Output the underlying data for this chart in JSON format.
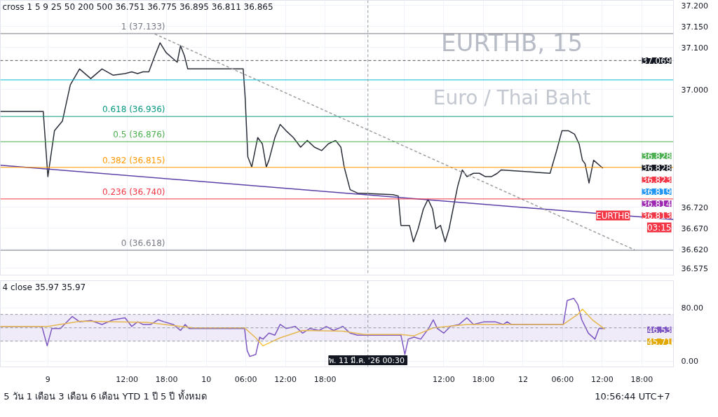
{
  "chart_data": [
    {
      "type": "line",
      "annotations": [
        "cross 1 5 9 25 50 200 500   36.751  36.775  36.895  36.811  36.865",
        "EURTHB, 15",
        "Euro / Thai Baht",
        "EURTHB",
        "03:15",
        "37.069",
        "36.828",
        "36.828",
        "36.823",
        "36.819",
        "36.814",
        "36.813"
      ],
      "xlim": [
        "2026-03-08T16:48",
        "2026-03-12T22:48"
      ],
      "xticks": [
        {
          "value": "2026-03-09T00:00",
          "label": null
        },
        {
          "value": "2026-03-09T12:00",
          "label": null
        },
        {
          "value": "2026-03-09T18:00",
          "label": null
        },
        {
          "value": "2026-03-10T00:00",
          "label": null
        },
        {
          "value": "2026-03-10T06:00",
          "label": null
        },
        {
          "value": "2026-03-10T12:00",
          "label": null
        },
        {
          "value": "2026-03-10T18:00",
          "label": null
        },
        {
          "value": "2026-03-11T00:00",
          "label": null
        },
        {
          "value": "2026-03-11T06:00",
          "label": null
        },
        {
          "value": "2026-03-11T12:00",
          "label": null
        },
        {
          "value": "2026-03-11T18:00",
          "label": null
        },
        {
          "value": "2026-03-12T00:00",
          "label": null
        },
        {
          "value": "2026-03-12T06:00",
          "label": null
        },
        {
          "value": "2026-03-12T12:00",
          "label": null
        },
        {
          "value": "2026-03-12T18:00",
          "label": null
        }
      ],
      "ylim": [
        36.559,
        37.212
      ],
      "yticks": [
        {
          "value": 36.575,
          "label": "36.575"
        },
        {
          "value": 36.62,
          "label": "36.620"
        },
        {
          "value": 36.67,
          "label": "36.670"
        },
        {
          "value": 36.72,
          "label": "36.720"
        },
        {
          "value": 37.0,
          "label": "37.000"
        },
        {
          "value": 37.1,
          "label": "37.100"
        },
        {
          "value": 37.15,
          "label": "37.150"
        },
        {
          "value": 37.2,
          "label": "37.200"
        }
      ],
      "tick_labels": "y",
      "grid": true,
      "ref_lines": [
        {
          "axis": "y",
          "value": 37.133,
          "label": "1 (37.133)",
          "color": "#787b86"
        },
        {
          "axis": "y",
          "value": 37.023,
          "color": "#00bcd4"
        },
        {
          "axis": "y",
          "value": 36.936,
          "label": "0.618 (36.936)",
          "color": "#089981"
        },
        {
          "axis": "y",
          "value": 36.876,
          "label": "0.5 (36.876)",
          "color": "#4caf50"
        },
        {
          "axis": "y",
          "value": 36.815,
          "label": "0.382 (36.815)",
          "color": "#ff9800"
        },
        {
          "axis": "y",
          "value": 36.74,
          "label": "0.236 (36.740)",
          "color": "#f23645"
        },
        {
          "axis": "y",
          "value": 36.618,
          "label": "0 (36.618)",
          "color": "#787b86"
        },
        {
          "axis": "y",
          "value": 37.069,
          "color": "#555555",
          "line_style": "dashed"
        },
        {
          "axis": "x",
          "value": "2026-03-11T00:30",
          "color": "#9598a1",
          "line_style": "dashed"
        }
      ],
      "series": [
        {
          "color": "#2a2e39",
          "x": [
            "2026-03-08T16:48",
            "2026-03-08T23:18",
            "2026-03-09T00:00",
            "2026-03-09T01:00",
            "2026-03-09T02:12",
            "2026-03-09T03:24",
            "2026-03-09T04:48",
            "2026-03-09T06:30",
            "2026-03-09T08:12",
            "2026-03-09T09:54",
            "2026-03-09T11:42",
            "2026-03-09T12:42",
            "2026-03-09T13:36",
            "2026-03-09T14:24",
            "2026-03-09T15:18",
            "2026-03-09T16:12",
            "2026-03-09T17:00",
            "2026-03-09T17:54",
            "2026-03-09T19:00",
            "2026-03-09T19:36",
            "2026-03-09T20:06",
            "2026-03-09T20:42",
            "2026-03-09T21:12",
            "2026-03-10T05:36",
            "2026-03-10T05:54",
            "2026-03-10T06:18",
            "2026-03-10T06:54",
            "2026-03-10T07:48",
            "2026-03-10T08:30",
            "2026-03-10T09:06",
            "2026-03-10T09:30",
            "2026-03-10T10:24",
            "2026-03-10T11:12",
            "2026-03-10T12:06",
            "2026-03-10T13:12",
            "2026-03-10T14:18",
            "2026-03-10T15:18",
            "2026-03-10T16:24",
            "2026-03-10T17:30",
            "2026-03-10T18:30",
            "2026-03-10T19:36",
            "2026-03-10T20:24",
            "2026-03-10T20:54",
            "2026-03-10T21:48",
            "2026-03-10T22:54",
            "2026-03-11T04:18",
            "2026-03-11T05:06",
            "2026-03-11T05:30",
            "2026-03-11T06:00",
            "2026-03-11T06:48",
            "2026-03-11T07:24",
            "2026-03-11T08:06",
            "2026-03-11T08:54",
            "2026-03-11T09:36",
            "2026-03-11T10:18",
            "2026-03-11T10:48",
            "2026-03-11T11:30",
            "2026-03-11T12:12",
            "2026-03-11T12:48",
            "2026-03-11T13:24",
            "2026-03-11T14:06",
            "2026-03-11T14:48",
            "2026-03-11T15:30",
            "2026-03-11T16:30",
            "2026-03-11T17:24",
            "2026-03-11T18:18",
            "2026-03-11T19:12",
            "2026-03-11T20:06",
            "2026-03-11T20:42",
            "2026-03-12T04:06",
            "2026-03-12T05:06",
            "2026-03-12T05:54",
            "2026-03-12T06:54",
            "2026-03-12T07:48",
            "2026-03-12T08:30",
            "2026-03-12T09:00",
            "2026-03-12T09:24",
            "2026-03-12T10:00",
            "2026-03-12T10:42",
            "2026-03-12T12:06"
          ],
          "values": [
            36.948,
            36.948,
            36.793,
            36.902,
            36.925,
            37.011,
            37.049,
            37.026,
            37.049,
            37.034,
            37.038,
            37.042,
            37.038,
            37.042,
            37.042,
            37.08,
            37.111,
            37.088,
            37.073,
            37.065,
            37.104,
            37.08,
            37.049,
            37.049,
            36.98,
            36.84,
            36.816,
            36.886,
            36.871,
            36.816,
            36.832,
            36.886,
            36.917,
            36.902,
            36.886,
            36.863,
            36.879,
            36.863,
            36.855,
            36.871,
            36.879,
            36.863,
            36.816,
            36.762,
            36.754,
            36.75,
            36.747,
            36.677,
            36.677,
            36.677,
            36.638,
            36.669,
            36.716,
            36.739,
            36.716,
            36.669,
            36.677,
            36.638,
            36.669,
            36.716,
            36.77,
            36.809,
            36.793,
            36.801,
            36.801,
            36.793,
            36.793,
            36.801,
            36.809,
            36.801,
            36.855,
            36.902,
            36.902,
            36.894,
            36.871,
            36.832,
            36.824,
            36.778,
            36.832,
            36.813
          ]
        },
        {
          "color": "#5b3fa8",
          "x": [
            "2026-03-08T16:48",
            "2026-03-12T22:48"
          ],
          "values": [
            36.82,
            36.691
          ]
        },
        {
          "color": "#9e9e9e",
          "line_style": "dashed",
          "x": [
            "2026-03-09T16:12",
            "2026-03-12T16:54"
          ],
          "values": [
            37.132,
            36.619
          ]
        }
      ]
    },
    {
      "type": "line",
      "annotations": [
        "4 close  35.97  35.97",
        "46.53",
        "45.71",
        "5 วัน   1 เดือน   3 เดือน   6 เดือน   YTD   1 ปี   5 ปี   ทั้งหมด",
        "10:56:44 UTC+7"
      ],
      "xlim": [
        "2026-03-08T16:48",
        "2026-03-12T22:48"
      ],
      "xticks": [
        {
          "value": "2026-03-09T00:00",
          "label": "9"
        },
        {
          "value": "2026-03-09T12:00",
          "label": "12:00"
        },
        {
          "value": "2026-03-09T18:00",
          "label": "18:00"
        },
        {
          "value": "2026-03-10T00:00",
          "label": "10"
        },
        {
          "value": "2026-03-10T06:00",
          "label": "06:00"
        },
        {
          "value": "2026-03-10T12:00",
          "label": "12:00"
        },
        {
          "value": "2026-03-10T18:00",
          "label": "18:00"
        },
        {
          "value": "2026-03-11T00:00",
          "label": null
        },
        {
          "value": "2026-03-11T06:00",
          "label": null
        },
        {
          "value": "2026-03-11T12:00",
          "label": "12:00"
        },
        {
          "value": "2026-03-11T18:00",
          "label": "18:00"
        },
        {
          "value": "2026-03-12T00:00",
          "label": "12"
        },
        {
          "value": "2026-03-12T06:00",
          "label": "06:00"
        },
        {
          "value": "2026-03-12T12:00",
          "label": "12:00"
        },
        {
          "value": "2026-03-12T18:00",
          "label": "18:00"
        }
      ],
      "ylim": [
        -8.6,
        120.6
      ],
      "yticks": [
        {
          "value": 0,
          "label": "0.00"
        },
        {
          "value": 80,
          "label": "80.00"
        }
      ],
      "grid": true,
      "bands": [
        {
          "axis": "y",
          "from": 30,
          "to": 70,
          "color": "#7e57c2"
        }
      ],
      "ref_lines": [
        {
          "axis": "y",
          "value": 70,
          "color": "#9598a1",
          "line_style": "dashed"
        },
        {
          "axis": "y",
          "value": 50,
          "color": "#9598a1",
          "line_style": "dashed"
        },
        {
          "axis": "y",
          "value": 30,
          "color": "#9598a1",
          "line_style": "dashed"
        },
        {
          "axis": "x",
          "value": "2026-03-11T00:30",
          "label": "พ. 11 มี.ค. '26  00:30",
          "color": "#9598a1",
          "line_style": "dashed"
        }
      ],
      "series": [
        {
          "color": "#7e57c2",
          "x": [
            "2026-03-08T16:48",
            "2026-03-08T23:06",
            "2026-03-08T23:54",
            "2026-03-09T00:36",
            "2026-03-09T01:54",
            "2026-03-09T03:42",
            "2026-03-09T04:48",
            "2026-03-09T06:30",
            "2026-03-09T08:12",
            "2026-03-09T09:54",
            "2026-03-09T11:42",
            "2026-03-09T12:42",
            "2026-03-09T13:36",
            "2026-03-09T14:24",
            "2026-03-09T15:36",
            "2026-03-09T16:42",
            "2026-03-09T17:36",
            "2026-03-09T19:00",
            "2026-03-09T20:06",
            "2026-03-09T20:48",
            "2026-03-09T21:24",
            "2026-03-09T22:12",
            "2026-03-10T05:48",
            "2026-03-10T06:12",
            "2026-03-10T06:36",
            "2026-03-10T07:30",
            "2026-03-10T08:06",
            "2026-03-10T08:36",
            "2026-03-10T09:30",
            "2026-03-10T10:24",
            "2026-03-10T11:12",
            "2026-03-10T12:06",
            "2026-03-10T13:30",
            "2026-03-10T14:36",
            "2026-03-10T15:42",
            "2026-03-10T17:06",
            "2026-03-10T18:12",
            "2026-03-10T19:18",
            "2026-03-10T20:42",
            "2026-03-10T21:48",
            "2026-03-10T22:54",
            "2026-03-11T00:54",
            "2026-03-11T05:30",
            "2026-03-11T06:06",
            "2026-03-11T06:36",
            "2026-03-11T07:30",
            "2026-03-11T08:30",
            "2026-03-11T09:42",
            "2026-03-11T10:24",
            "2026-03-11T11:00",
            "2026-03-11T12:00",
            "2026-03-11T13:00",
            "2026-03-11T14:18",
            "2026-03-11T15:30",
            "2026-03-11T16:30",
            "2026-03-11T18:06",
            "2026-03-11T19:48",
            "2026-03-11T21:00",
            "2026-03-11T21:36",
            "2026-03-11T22:12",
            "2026-03-12T06:06",
            "2026-03-12T06:42",
            "2026-03-12T07:42",
            "2026-03-12T08:18",
            "2026-03-12T08:54",
            "2026-03-12T09:54",
            "2026-03-12T10:54",
            "2026-03-12T11:30",
            "2026-03-12T12:24"
          ],
          "values": [
            52,
            52,
            23,
            49,
            49,
            67,
            59,
            61,
            55,
            62,
            65,
            52,
            59,
            55,
            55,
            62,
            59,
            55,
            46,
            55,
            49,
            49,
            49,
            16,
            7,
            10,
            36,
            33,
            42,
            39,
            55,
            49,
            52,
            42,
            49,
            46,
            52,
            46,
            52,
            42,
            39,
            39,
            39,
            10,
            33,
            36,
            33,
            49,
            62,
            49,
            42,
            52,
            55,
            65,
            55,
            59,
            59,
            55,
            59,
            55,
            55,
            91,
            94,
            85,
            62,
            42,
            33,
            49,
            49
          ]
        },
        {
          "color": "#f5c542",
          "x": [
            "2026-03-08T16:48",
            "2026-03-09T00:00",
            "2026-03-09T05:00",
            "2026-03-09T15:00",
            "2026-03-09T22:00",
            "2026-03-10T05:48",
            "2026-03-10T07:30",
            "2026-03-10T08:36",
            "2026-03-10T11:12",
            "2026-03-10T14:36",
            "2026-03-10T20:42",
            "2026-03-11T00:00",
            "2026-03-11T05:30",
            "2026-03-11T07:30",
            "2026-03-11T10:24",
            "2026-03-11T15:30",
            "2026-03-11T20:00",
            "2026-03-12T06:06",
            "2026-03-12T08:18",
            "2026-03-12T09:00",
            "2026-03-12T10:30",
            "2026-03-12T12:24"
          ],
          "values": [
            52,
            52,
            60,
            58,
            50,
            50,
            35,
            23,
            35,
            46,
            45,
            40,
            40,
            38,
            50,
            55,
            55,
            55,
            70,
            78,
            62,
            48
          ]
        }
      ]
    }
  ]
}
